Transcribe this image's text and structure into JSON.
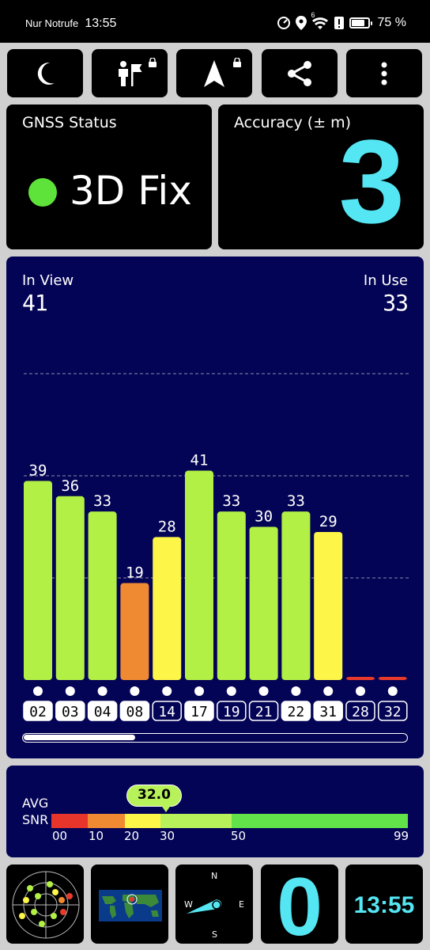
{
  "status_bar": {
    "carrier": "Nur Notrufe",
    "time": "13:55",
    "battery": "75 %",
    "signal_superscript": "6",
    "icons": [
      "speed-meter-icon",
      "location-pin-icon",
      "wifi-icon",
      "alert-icon",
      "battery-icon"
    ]
  },
  "toolbar": {
    "buttons": [
      {
        "name": "night-mode-button",
        "icon": "moon-icon",
        "locked": false
      },
      {
        "name": "survey-button",
        "icon": "person-flag-icon",
        "locked": true
      },
      {
        "name": "navigation-button",
        "icon": "navigation-arrow-icon",
        "locked": true
      },
      {
        "name": "share-button",
        "icon": "share-icon",
        "locked": false
      },
      {
        "name": "more-menu-button",
        "icon": "kebab-menu-icon",
        "locked": false
      }
    ]
  },
  "gnss_status": {
    "title": "GNSS Status",
    "fix": "3D Fix",
    "fix_color": "#5ee33a"
  },
  "accuracy": {
    "title": "Accuracy (± m)",
    "value": "3",
    "color": "#55e6f3"
  },
  "satellites": {
    "in_view_label": "In View",
    "in_view": "41",
    "in_use_label": "In Use",
    "in_use": "33"
  },
  "chart_data": {
    "type": "bar",
    "title": "",
    "xlabel": "",
    "ylabel": "",
    "ylim": [
      0,
      60
    ],
    "gridlines": [
      20,
      40,
      60
    ],
    "categories": [
      "02",
      "03",
      "04",
      "08",
      "14",
      "17",
      "19",
      "21",
      "22",
      "31",
      "28",
      "32"
    ],
    "values": [
      39,
      36,
      33,
      19,
      28,
      41,
      33,
      30,
      33,
      29,
      0,
      0
    ],
    "labels": [
      "39",
      "36",
      "33",
      "19",
      "28",
      "41",
      "33",
      "30",
      "33",
      "29",
      "",
      ""
    ],
    "in_use": [
      true,
      true,
      true,
      true,
      false,
      true,
      false,
      false,
      true,
      true,
      false,
      false
    ],
    "colors": [
      "#b2f045",
      "#b2f045",
      "#b2f045",
      "#f08a32",
      "#fdf548",
      "#b2f045",
      "#b2f045",
      "#b2f045",
      "#b2f045",
      "#fdf548",
      "#e83a2c",
      "#e83a2c"
    ],
    "scroll_position": 0.29
  },
  "snr": {
    "label_line1": "AVG",
    "label_line2": "SNR",
    "avg": "32.0",
    "avg_value": 32.0,
    "ticks": [
      "00",
      "10",
      "20",
      "30",
      "50",
      "99"
    ],
    "scale_colors": [
      "#e8352b",
      "#f08a32",
      "#fdf548",
      "#b7f25a",
      "#63e34a"
    ]
  },
  "bottom_bar": {
    "skyplot_icon": "skyplot-radar-icon",
    "map_icon": "world-map-icon",
    "compass": {
      "north": "N",
      "east": "E",
      "south": "S",
      "west": "W"
    },
    "speed": "0",
    "clock": "13:55",
    "color": "#55e6f3"
  }
}
